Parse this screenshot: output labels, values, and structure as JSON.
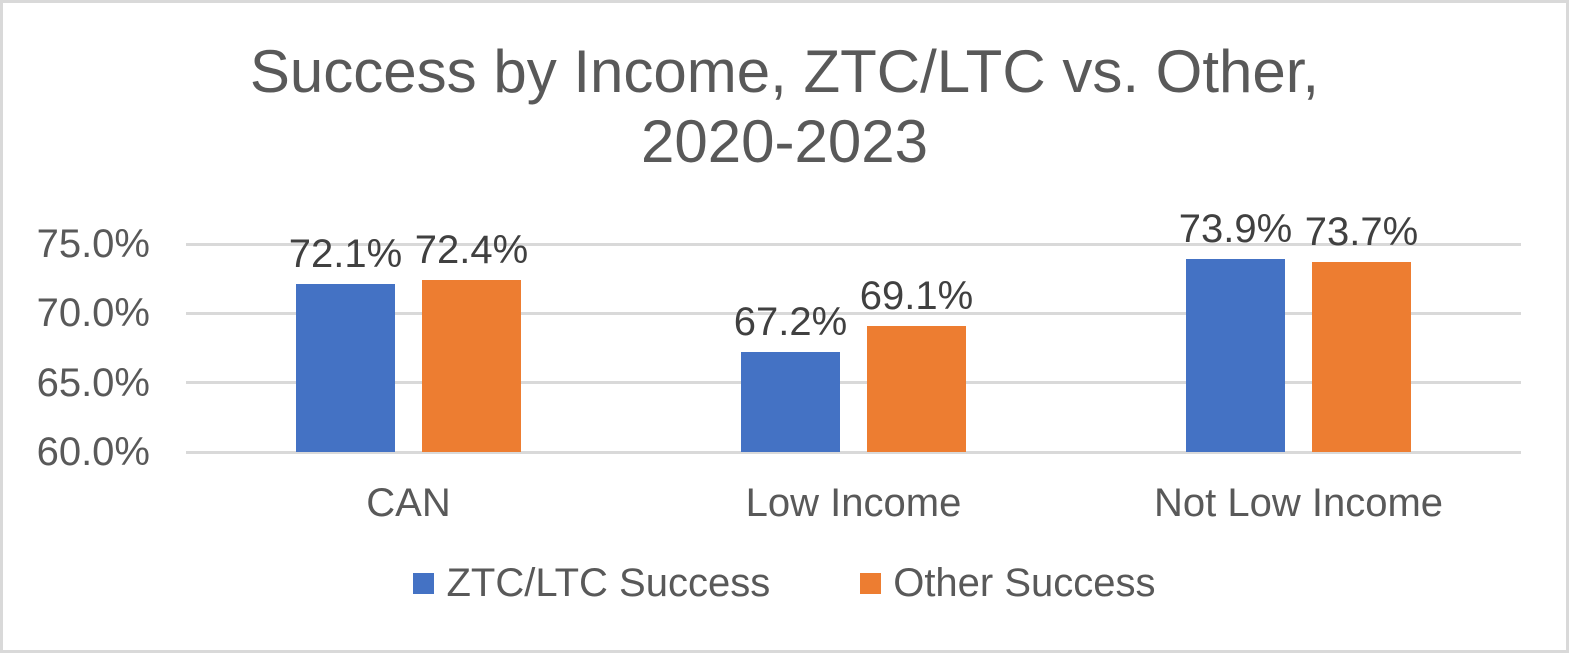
{
  "frame": {
    "background_color": "#ffffff",
    "border_color": "#d9d9d9"
  },
  "chart_data": {
    "type": "bar",
    "title": "Success by Income, ZTC/LTC vs. Other,\n2020-2023",
    "categories": [
      "CAN",
      "Low Income",
      "Not Low Income"
    ],
    "series": [
      {
        "name": "ZTC/LTC Success",
        "color": "#4472C4",
        "values": [
          72.1,
          67.2,
          73.9
        ],
        "data_labels": [
          "72.1%",
          "67.2%",
          "73.9%"
        ]
      },
      {
        "name": "Other Success",
        "color": "#ED7D31",
        "values": [
          72.4,
          69.1,
          73.7
        ],
        "data_labels": [
          "72.4%",
          "69.1%",
          "73.7%"
        ]
      }
    ],
    "y_axis": {
      "min": 60,
      "max": 75,
      "major_unit": 5,
      "tick_labels": [
        "60.0%",
        "65.0%",
        "70.0%",
        "75.0%"
      ]
    },
    "xlabel": "",
    "ylabel": "",
    "grid": true,
    "legend_position": "bottom",
    "colors": {
      "title_text": "#595959",
      "axis_text": "#595959",
      "data_label_text": "#404040",
      "gridline": "#d9d9d9"
    }
  }
}
